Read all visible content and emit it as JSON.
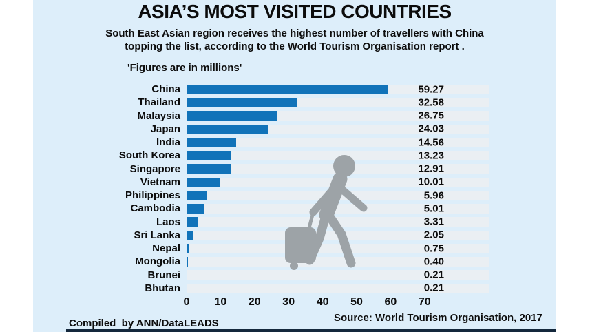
{
  "header": {
    "title": "ASIA’S MOST VISITED COUNTRIES",
    "subtitle_line1": "South East Asian region receives the highest number of travellers with China",
    "subtitle_line2": "topping the list, according to the World Tourism Organisation report ."
  },
  "note": "'Figures are in millions'",
  "chart_data": {
    "type": "bar",
    "orientation": "horizontal",
    "title": "ASIA’S MOST VISITED COUNTRIES",
    "units_note": "'Figures are in millions'",
    "categories": [
      "China",
      "Thailand",
      "Malaysia",
      "Japan",
      "India",
      "South Korea",
      "Singapore",
      "Vietnam",
      "Philippines",
      "Cambodia",
      "Laos",
      "Sri Lanka",
      "Nepal",
      "Mongolia",
      "Brunei",
      "Bhutan"
    ],
    "values": [
      59.27,
      32.58,
      26.75,
      24.03,
      14.56,
      13.23,
      12.91,
      10.01,
      5.96,
      5.01,
      3.31,
      2.05,
      0.75,
      0.4,
      0.21,
      0.21
    ],
    "value_labels": [
      "59.27",
      "32.58",
      "26.75",
      "24.03",
      "14.56",
      "13.23",
      "12.91",
      "10.01",
      "5.96",
      "5.01",
      "3.31",
      "2.05",
      "0.75",
      "0.40",
      "0.21",
      "0.21"
    ],
    "x_ticks": [
      0,
      10,
      20,
      30,
      40,
      50,
      60,
      70
    ],
    "xlim": [
      0,
      70
    ],
    "grid": false,
    "bar_color": "#1173b9",
    "track_color": "#eaeff3",
    "background_color": "#ddeefa"
  },
  "icons": {
    "traveler": "traveler-with-luggage-icon",
    "traveler_color": "#9da3a7"
  },
  "footer": {
    "compiled": "Compiled  by ANN/DataLEADS",
    "source": "Source: World Tourism Organisation, 2017"
  }
}
